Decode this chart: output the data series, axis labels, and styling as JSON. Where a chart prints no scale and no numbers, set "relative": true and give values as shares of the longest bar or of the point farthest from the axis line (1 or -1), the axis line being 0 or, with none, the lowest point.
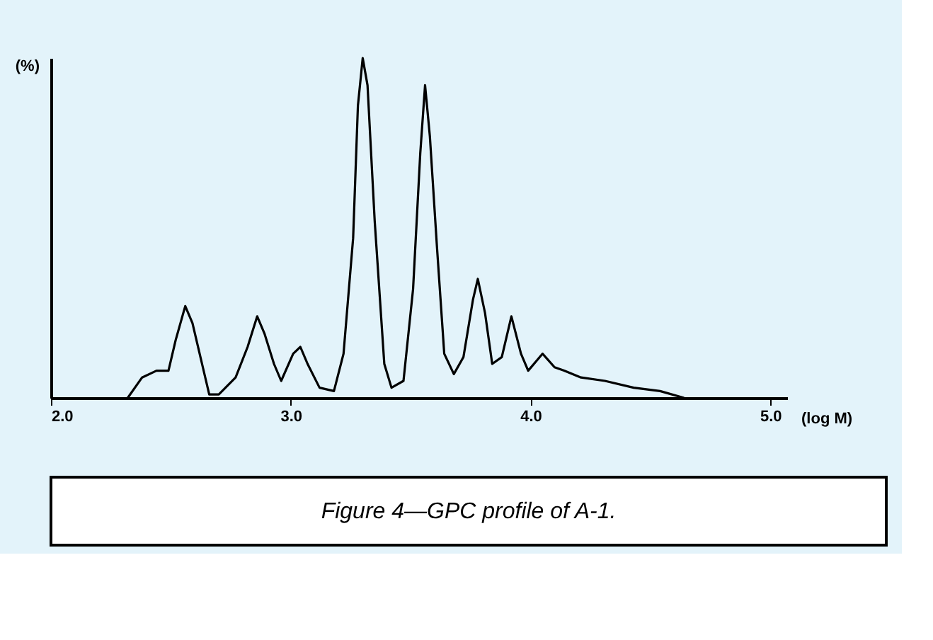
{
  "chart_data": {
    "type": "line",
    "relative": true,
    "ylabel": "(%)",
    "xlabel": "(log M)",
    "xlim": [
      2.0,
      5.07
    ],
    "xticks": [
      {
        "value": 2,
        "label": "2.0"
      },
      {
        "value": 3,
        "label": "3.0"
      },
      {
        "value": 4,
        "label": "4.0"
      },
      {
        "value": 5,
        "label": "5.0"
      }
    ],
    "annotations": [
      "Figure 4—GPC profile of A-1."
    ],
    "grid": false,
    "marker": "none",
    "line_style": "solid",
    "series": [
      {
        "color": "#000000",
        "x": [
          2.32,
          2.38,
          2.44,
          2.49,
          2.52,
          2.56,
          2.59,
          2.63,
          2.66,
          2.7,
          2.77,
          2.82,
          2.86,
          2.89,
          2.93,
          2.96,
          3.01,
          3.04,
          3.07,
          3.12,
          3.18,
          3.22,
          3.26,
          3.28,
          3.3,
          3.32,
          3.35,
          3.39,
          3.42,
          3.47,
          3.51,
          3.54,
          3.56,
          3.58,
          3.61,
          3.64,
          3.68,
          3.72,
          3.76,
          3.78,
          3.81,
          3.84,
          3.88,
          3.92,
          3.96,
          3.99,
          4.05,
          4.1,
          4.14,
          4.21,
          4.31,
          4.43,
          4.54,
          4.64
        ],
        "values": [
          0,
          0.06,
          0.08,
          0.08,
          0.17,
          0.27,
          0.22,
          0.1,
          0.01,
          0.01,
          0.06,
          0.15,
          0.24,
          0.19,
          0.1,
          0.05,
          0.13,
          0.15,
          0.1,
          0.03,
          0.02,
          0.13,
          0.47,
          0.86,
          1.0,
          0.92,
          0.52,
          0.1,
          0.03,
          0.05,
          0.32,
          0.72,
          0.92,
          0.77,
          0.44,
          0.13,
          0.07,
          0.12,
          0.29,
          0.35,
          0.25,
          0.1,
          0.12,
          0.24,
          0.13,
          0.08,
          0.13,
          0.09,
          0.08,
          0.06,
          0.05,
          0.03,
          0.02,
          0
        ]
      }
    ]
  }
}
